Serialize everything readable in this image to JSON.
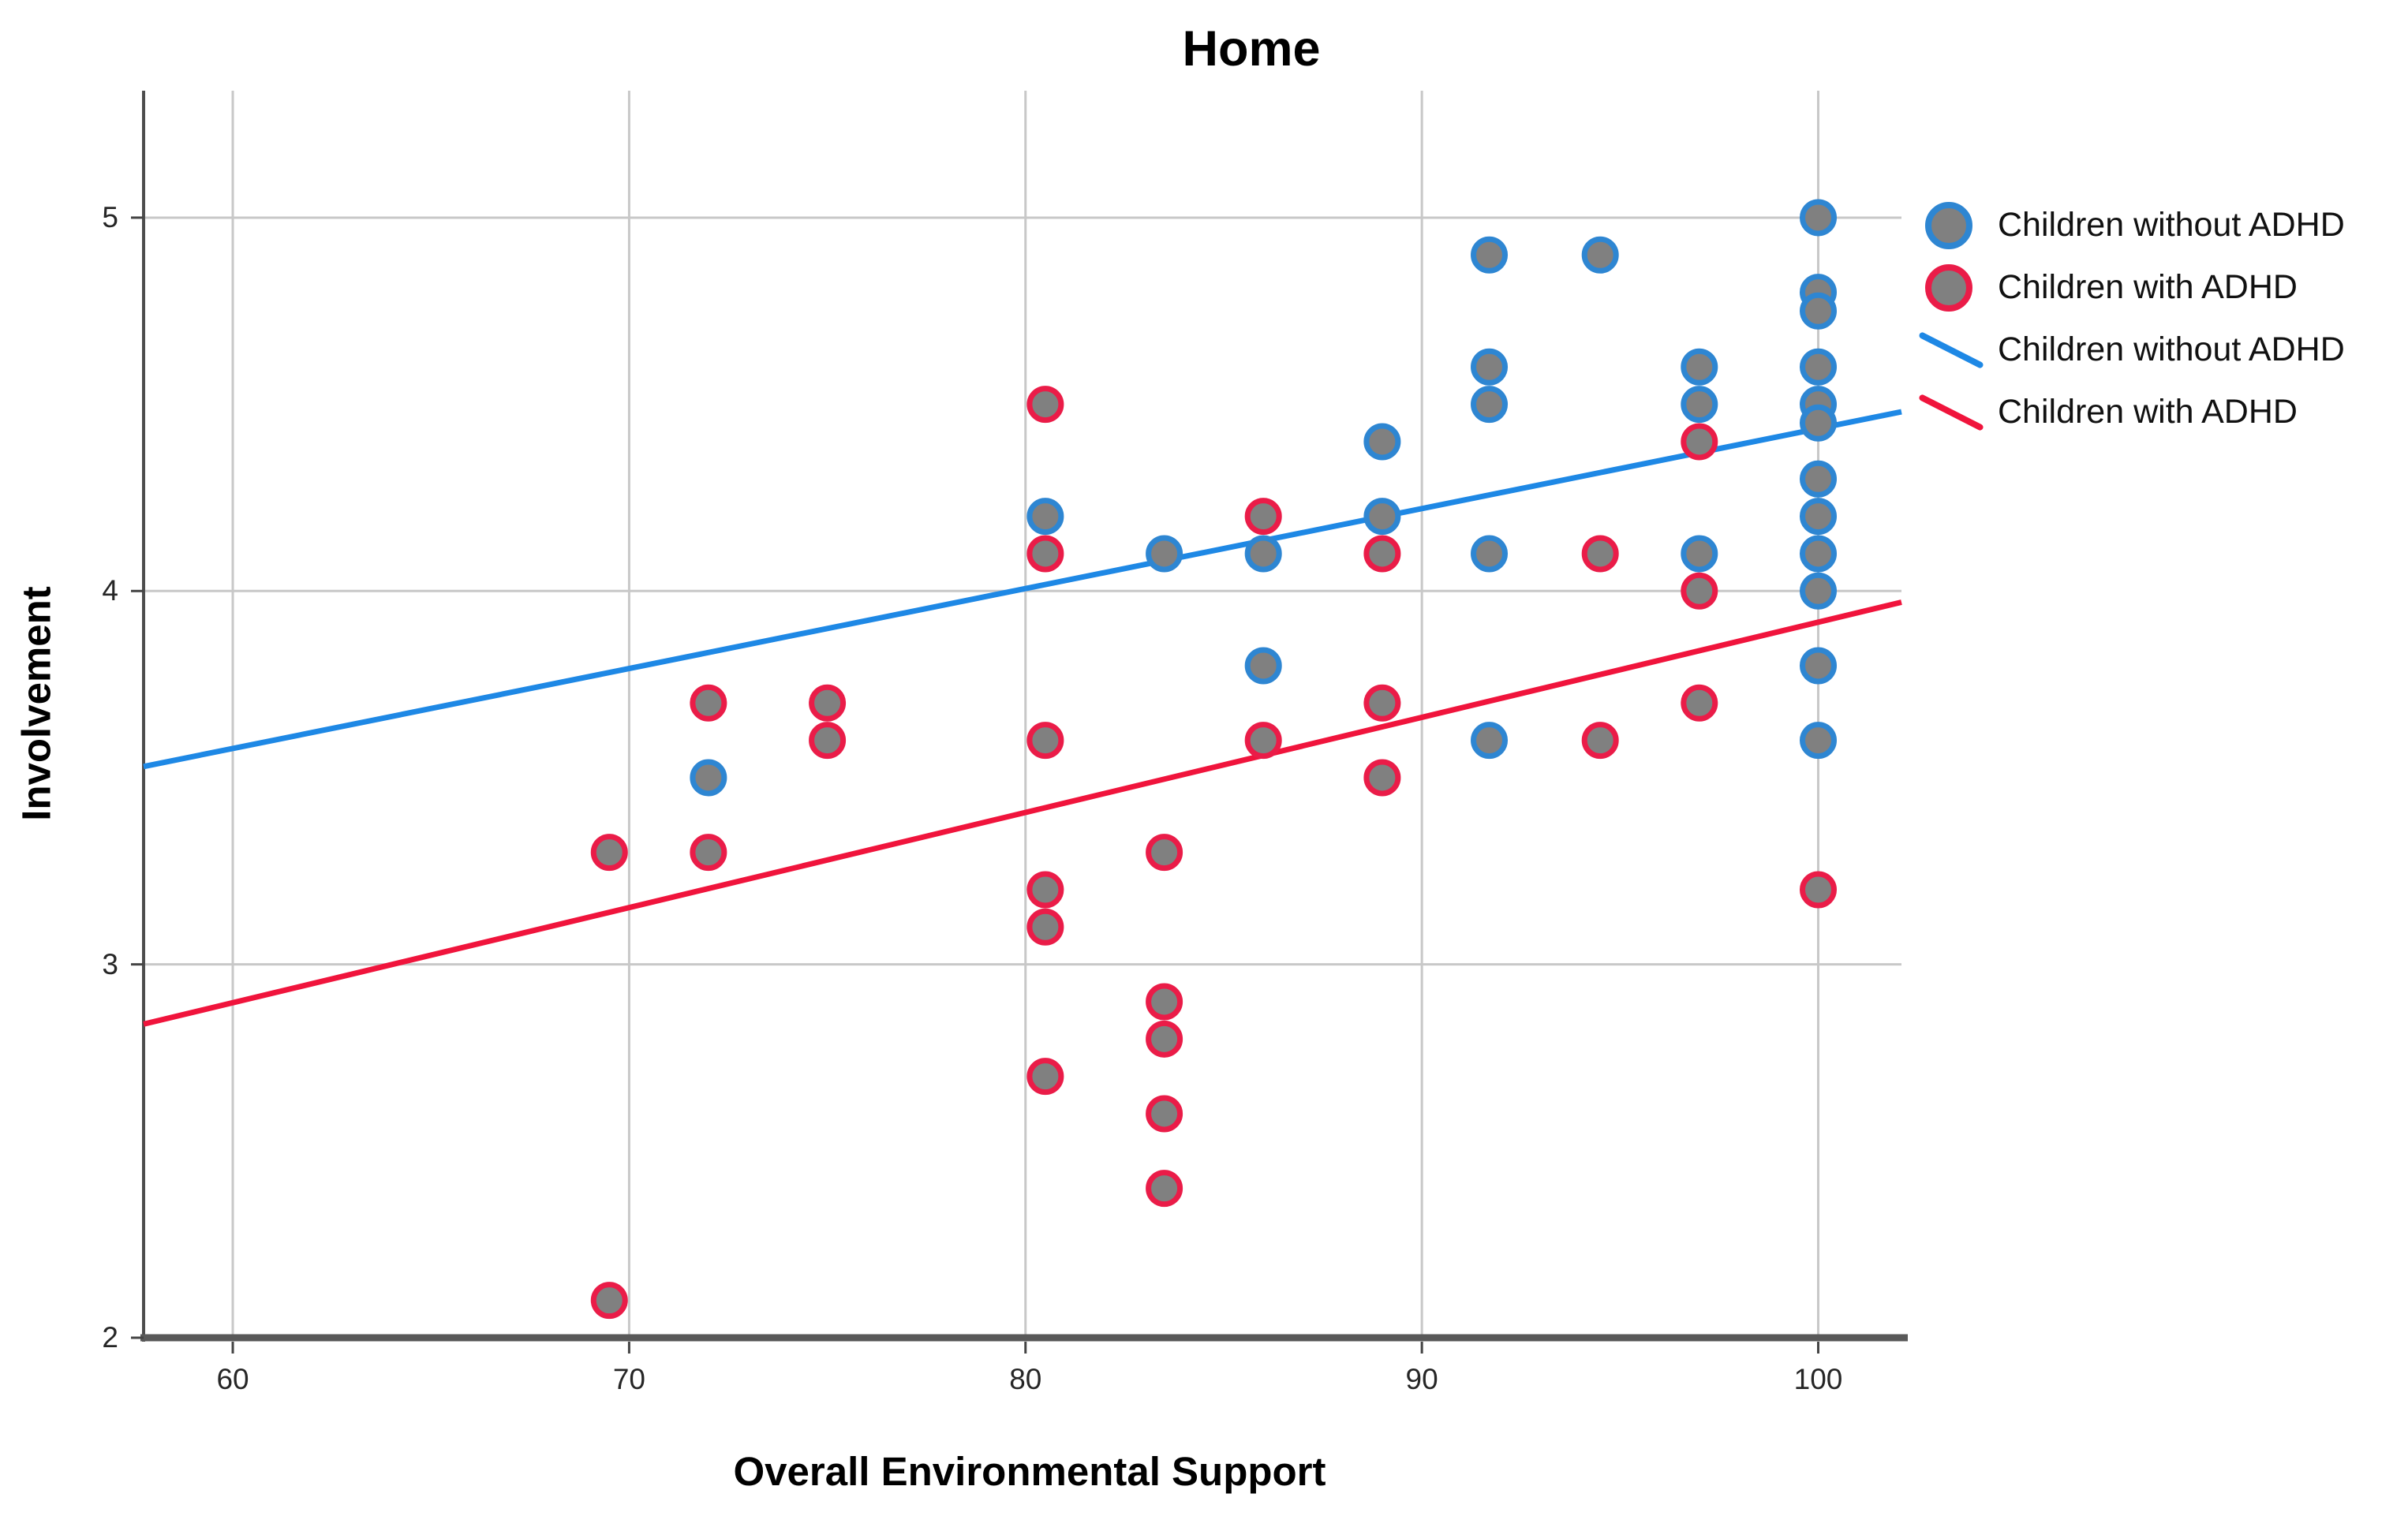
{
  "chart": {
    "title": "Home",
    "x_axis": {
      "label": "Overall Environmental Support",
      "tick_labels": [
        "60",
        "70",
        "80",
        "90",
        "100"
      ]
    },
    "y_axis": {
      "label": "Involvement",
      "tick_labels": [
        "5",
        "4",
        "3",
        "2"
      ]
    },
    "legend": [
      {
        "type": "marker",
        "color_key": "blue",
        "label": "Children without ADHD"
      },
      {
        "type": "marker",
        "color_key": "red",
        "label": "Children with ADHD"
      },
      {
        "type": "line",
        "color_key": "blue",
        "label": "Children without ADHD"
      },
      {
        "type": "line",
        "color_key": "red",
        "label": "Children with ADHD"
      }
    ],
    "colors": {
      "blue": "#2E86D2",
      "blue_line": "#1E88E5",
      "red": "#EA1C48",
      "red_line": "#F0143C",
      "dot_fill": "#808080",
      "grid": "#C8C8C8",
      "axis_dark": "#4D4D4D",
      "axis_bottom": "#595959",
      "tick": "#444444"
    }
  },
  "chart_data": {
    "type": "scatter",
    "title": "Home",
    "xlabel": "Overall Environmental Support",
    "ylabel": "Involvement",
    "xlim": [
      57.75,
      102.1
    ],
    "ylim": [
      2,
      5.34
    ],
    "xticks": [
      60,
      70,
      80,
      90,
      100
    ],
    "yticks": [
      5,
      4,
      3,
      2
    ],
    "grid": true,
    "legend_position": "top-right",
    "series": [
      {
        "name": "Children without ADHD",
        "color_key": "blue",
        "points": [
          [
            72,
            3.5
          ],
          [
            80.5,
            4.2
          ],
          [
            83.5,
            4.1
          ],
          [
            86,
            4.1
          ],
          [
            86,
            3.8
          ],
          [
            89,
            4.4
          ],
          [
            89,
            4.2
          ],
          [
            91.7,
            4.9
          ],
          [
            91.7,
            4.6
          ],
          [
            91.7,
            4.5
          ],
          [
            91.7,
            4.1
          ],
          [
            91.7,
            3.6
          ],
          [
            94.5,
            4.9
          ],
          [
            97,
            4.6
          ],
          [
            97,
            4.5
          ],
          [
            97,
            4.1
          ],
          [
            100,
            5.0
          ],
          [
            100,
            4.8
          ],
          [
            100,
            4.75
          ],
          [
            100,
            4.6
          ],
          [
            100,
            4.5
          ],
          [
            100,
            4.45
          ],
          [
            100,
            4.3
          ],
          [
            100,
            4.2
          ],
          [
            100,
            4.1
          ],
          [
            100,
            4.0
          ],
          [
            100,
            3.8
          ],
          [
            100,
            3.6
          ]
        ]
      },
      {
        "name": "Children with ADHD",
        "color_key": "red",
        "points": [
          [
            69.5,
            3.3
          ],
          [
            69.5,
            2.1
          ],
          [
            72,
            3.7
          ],
          [
            72,
            3.3
          ],
          [
            75,
            3.7
          ],
          [
            75,
            3.6
          ],
          [
            80.5,
            4.5
          ],
          [
            80.5,
            4.1
          ],
          [
            80.5,
            3.6
          ],
          [
            80.5,
            3.2
          ],
          [
            80.5,
            3.1
          ],
          [
            80.5,
            2.7
          ],
          [
            83.5,
            3.3
          ],
          [
            83.5,
            2.9
          ],
          [
            83.5,
            2.8
          ],
          [
            83.5,
            2.6
          ],
          [
            83.5,
            2.4
          ],
          [
            86,
            4.2
          ],
          [
            86,
            3.6
          ],
          [
            89,
            4.1
          ],
          [
            89,
            3.7
          ],
          [
            89,
            3.5
          ],
          [
            94.5,
            4.1
          ],
          [
            94.5,
            3.6
          ],
          [
            97,
            4.4
          ],
          [
            97,
            4.0
          ],
          [
            97,
            3.7
          ],
          [
            100,
            3.2
          ]
        ]
      }
    ],
    "fit_lines": [
      {
        "name": "Children without ADHD",
        "color_key": "blue",
        "x1": 57.75,
        "y1": 3.53,
        "x2": 102.1,
        "y2": 4.48
      },
      {
        "name": "Children with ADHD",
        "color_key": "red",
        "x1": 57.75,
        "y1": 2.84,
        "x2": 102.1,
        "y2": 3.97
      }
    ]
  }
}
